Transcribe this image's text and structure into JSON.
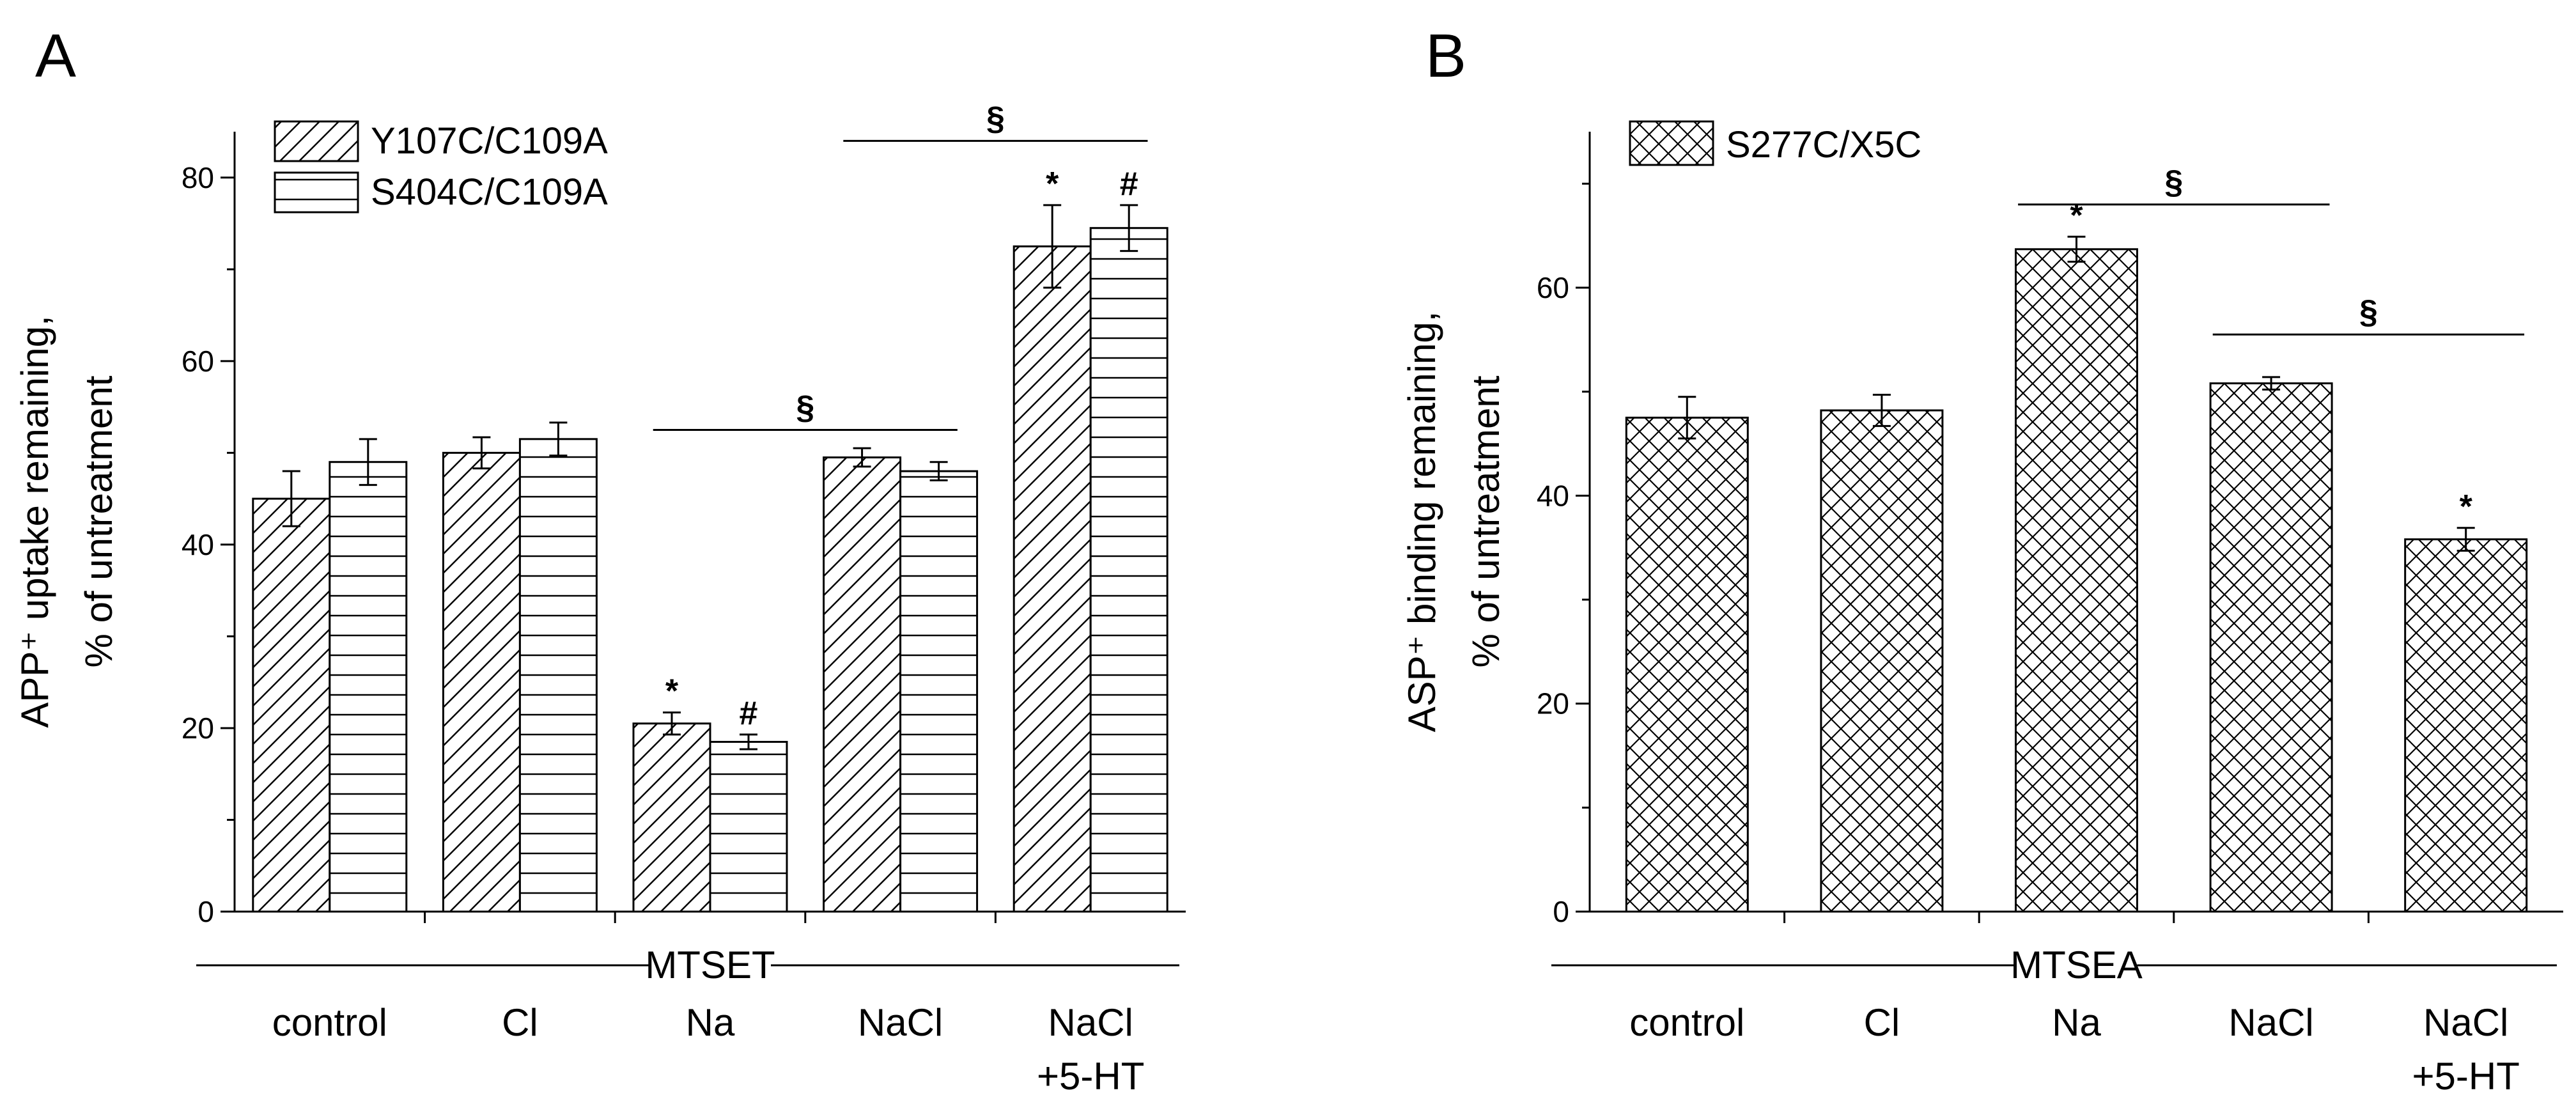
{
  "chart_data": [
    {
      "panel": "A",
      "type": "bar",
      "categories": [
        "control",
        "Cl",
        "Na",
        "NaCl",
        "NaCl\n+5-HT"
      ],
      "category_lines": [
        [
          "control"
        ],
        [
          "Cl"
        ],
        [
          "Na"
        ],
        [
          "NaCl"
        ],
        [
          "NaCl",
          "+5-HT"
        ]
      ],
      "series": [
        {
          "name": "Y107C/C109A",
          "pattern": "diagonal",
          "values": [
            45,
            50,
            20.5,
            49.5,
            72.5
          ],
          "errors": [
            3,
            1.7,
            1.2,
            1,
            4.5
          ]
        },
        {
          "name": "S404C/C109A",
          "pattern": "horizontal",
          "values": [
            49,
            51.5,
            18.5,
            48,
            74.5
          ],
          "errors": [
            2.5,
            1.8,
            0.8,
            1,
            2.5
          ]
        }
      ],
      "ylabel_lines": [
        "APP⁺ uptake remaining,",
        "% of untreatment"
      ],
      "xlabel_group": "MTSET",
      "ylim": [
        0,
        85
      ],
      "yticks": [
        0,
        20,
        40,
        60,
        80
      ],
      "annotations": [
        {
          "category": 2,
          "series": 0,
          "text": "*"
        },
        {
          "category": 2,
          "series": 1,
          "text": "#"
        },
        {
          "category": 4,
          "series": 0,
          "text": "*"
        },
        {
          "category": 4,
          "series": 1,
          "text": "#"
        }
      ],
      "brackets": [
        {
          "from": 2,
          "to": 3,
          "value": 52.5,
          "text": "§"
        },
        {
          "from": 3,
          "to": 4,
          "value": 84,
          "text": "§"
        }
      ]
    },
    {
      "panel": "B",
      "type": "bar",
      "categories": [
        "control",
        "Cl",
        "Na",
        "NaCl",
        "NaCl\n+5-HT"
      ],
      "category_lines": [
        [
          "control"
        ],
        [
          "Cl"
        ],
        [
          "Na"
        ],
        [
          "NaCl"
        ],
        [
          "NaCl",
          "+5-HT"
        ]
      ],
      "series": [
        {
          "name": "S277C/X5C",
          "pattern": "crosshatch",
          "values": [
            47.5,
            48.2,
            63.7,
            50.8,
            35.8
          ],
          "errors": [
            2,
            1.5,
            1.2,
            0.6,
            1.1
          ]
        }
      ],
      "ylabel_lines": [
        "ASP⁺ binding remaining,",
        "% of untreatment"
      ],
      "xlabel_group": "MTSEA",
      "ylim": [
        0,
        75
      ],
      "yticks": [
        0,
        20,
        40,
        60
      ],
      "annotations": [
        {
          "category": 2,
          "series": 0,
          "text": "*"
        },
        {
          "category": 4,
          "series": 0,
          "text": "*"
        }
      ],
      "brackets": [
        {
          "from": 2,
          "to": 3,
          "value": 68,
          "text": "§"
        },
        {
          "from": 3,
          "to": 4,
          "value": 55.5,
          "text": "§"
        }
      ]
    }
  ]
}
